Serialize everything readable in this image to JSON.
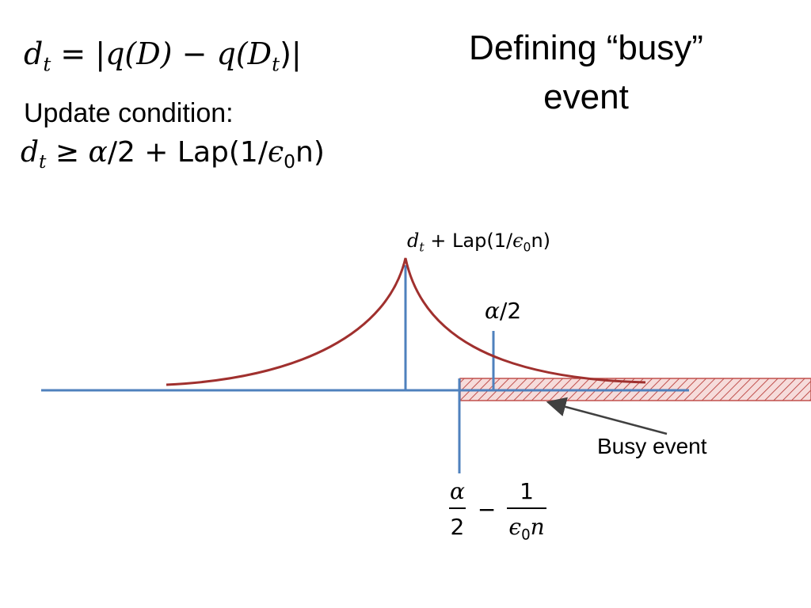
{
  "title": "Defining “busy” event",
  "formulas": {
    "dt_definition": {
      "lhs": "d",
      "lhs_sub": "t",
      "eq": " = |",
      "q1": "q",
      "D1": "(D)",
      "minus": " − ",
      "q2": "q",
      "D2_open": "(D",
      "D2_sub": "t",
      "close": ")|"
    },
    "update_label": "Update condition:",
    "update_condition": {
      "lhs": "d",
      "lhs_sub": "t",
      "geq": " ≥ ",
      "alpha": "α",
      "half": "/2 + Lap(1/",
      "eps": "ϵ",
      "eps_sub": "0",
      "tail": "n)"
    }
  },
  "diagram": {
    "peak_label": {
      "d": "d",
      "sub": "t",
      "plus": " + Lap(1/",
      "eps": "ϵ",
      "eps_sub": "0",
      "tail": "n)"
    },
    "threshold_label": {
      "alpha": "α",
      "rest": "/2"
    },
    "busy_label": "Busy event",
    "fraction_expr": {
      "num1": "α",
      "den1": "2",
      "minus": "−",
      "num2": "1",
      "den2_eps": "ϵ",
      "den2_sub": "0",
      "den2_n": "n"
    },
    "colors": {
      "axis": "#4f81bd",
      "curve": "#a0302e",
      "busy_fill": "#e6b8b7",
      "busy_stroke": "#c0504d",
      "arrow": "#404040"
    }
  }
}
